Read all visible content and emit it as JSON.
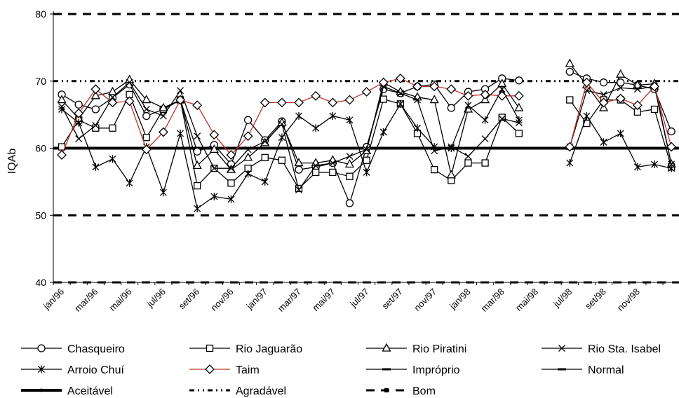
{
  "chart_data": {
    "type": "line",
    "ylabel": "IQAb",
    "ylim": [
      40,
      80
    ],
    "yticks": [
      40,
      50,
      60,
      70,
      80
    ],
    "xtick_labels": [
      "jan/96",
      "mar/96",
      "mai/96",
      "jul/96",
      "set/96",
      "nov/96",
      "jan/97",
      "mar/97",
      "mai/97",
      "jul/97",
      "set/97",
      "nov/97",
      "jan/98",
      "mar/98",
      "mai/98",
      "jul/98",
      "set/98",
      "nov/98"
    ],
    "x_start": "jan/96",
    "x_end": "dez/98",
    "legend_position": "bottom",
    "grid": false,
    "series": [
      {
        "name": "Chasqueiro",
        "marker": "circle",
        "color": "#000000",
        "values": [
          68,
          66.5,
          65.8,
          67.5,
          69.5,
          64.8,
          65.8,
          67.2,
          59.5,
          60.5,
          57.6,
          64.2,
          61.2,
          64,
          56.8,
          57.2,
          57.8,
          51.8,
          60.2,
          68.8,
          68.2,
          69.2,
          69.5,
          66,
          68.4,
          68.8,
          70.4,
          70.1,
          null,
          null,
          71.4,
          70.4,
          69.8,
          69.8,
          69.4,
          68.8,
          62.5
        ]
      },
      {
        "name": "Rio Jaguarão",
        "marker": "square",
        "color": "#000000",
        "values": [
          60.2,
          64.2,
          63,
          63,
          68,
          61.6,
          65.8,
          67.2,
          54.4,
          57,
          54.8,
          57,
          58.6,
          58.2,
          54,
          56.4,
          56.4,
          55.8,
          58.2,
          67.3,
          66.6,
          62.2,
          56.8,
          55.2,
          57.8,
          57.8,
          64.6,
          62.2,
          null,
          null,
          67.2,
          63.7,
          67.2,
          67.2,
          65.4,
          65.8,
          57.2
        ]
      },
      {
        "name": "Rio Piratini",
        "marker": "triangle",
        "color": "#000000",
        "values": [
          67.2,
          64.4,
          67.8,
          68.4,
          70.2,
          67.2,
          66,
          67.2,
          57.4,
          59.8,
          56.8,
          58.6,
          60.8,
          63.8,
          57.8,
          57.8,
          58.2,
          57.6,
          59.6,
          69.8,
          68.4,
          67.6,
          67.2,
          56,
          65.8,
          67.2,
          69.6,
          66,
          null,
          null,
          72.6,
          69.4,
          66,
          71,
          69.4,
          69.6,
          57.6
        ]
      },
      {
        "name": "Rio Sta. Isabel",
        "marker": "x",
        "color": "#000000",
        "values": [
          66.2,
          61.4,
          63.4,
          67.6,
          69.8,
          65.8,
          64.8,
          68.6,
          61.8,
          57,
          57,
          59.8,
          61,
          63.6,
          53.8,
          57.4,
          57.8,
          58.8,
          59.8,
          69.2,
          68.2,
          67.2,
          59.6,
          60.2,
          58.8,
          61.4,
          64.4,
          63.8,
          null,
          null,
          60.2,
          68.6,
          68,
          69,
          68.8,
          69.2,
          57.6
        ]
      },
      {
        "name": "Arroio Chuí",
        "marker": "star",
        "color": "#000000",
        "values": [
          65.8,
          63.8,
          57.2,
          58.4,
          54.8,
          60.2,
          53.4,
          62.2,
          51,
          52.8,
          52.4,
          56.2,
          55,
          61.6,
          64.8,
          63,
          64.8,
          64.2,
          56.4,
          62.4,
          66.6,
          63,
          60.2,
          60,
          66.4,
          64.2,
          68.8,
          64.2,
          null,
          null,
          57.8,
          64.8,
          60.9,
          62.2,
          57.2,
          57.6,
          57
        ]
      },
      {
        "name": "Taim",
        "marker": "diamond",
        "color": "#c0302a",
        "values": [
          59,
          65.2,
          68.8,
          66.8,
          67,
          59.8,
          62.4,
          67.2,
          66.4,
          62,
          59,
          61.8,
          66.8,
          66.8,
          66.8,
          67.8,
          66.8,
          67.2,
          68.4,
          69.8,
          70.4,
          69.2,
          69.2,
          68.8,
          67.8,
          68,
          67.8,
          67.8,
          null,
          null,
          60.2,
          69.8,
          66.8,
          67.4,
          66.4,
          69.2,
          60.2
        ]
      }
    ],
    "reference_lines": [
      {
        "name": "Impróprio",
        "value": 40,
        "style": "long-dash-square"
      },
      {
        "name": "Normal",
        "value": 50,
        "style": "long-dash-square"
      },
      {
        "name": "Aceitável",
        "value": 60,
        "style": "thick-solid-dot"
      },
      {
        "name": "Agradável",
        "value": 70,
        "style": "dash-dot-dot"
      },
      {
        "name": "Bom",
        "value": 80,
        "style": "long-dash-square"
      }
    ],
    "legend_entries": [
      "Chasqueiro",
      "Rio Jaguarão",
      "Rio Piratini",
      "Rio Sta. Isabel",
      "Arroio Chuí",
      "Taim",
      "Impróprio",
      "Normal",
      "Aceitável",
      "Agradável",
      "Bom"
    ]
  }
}
